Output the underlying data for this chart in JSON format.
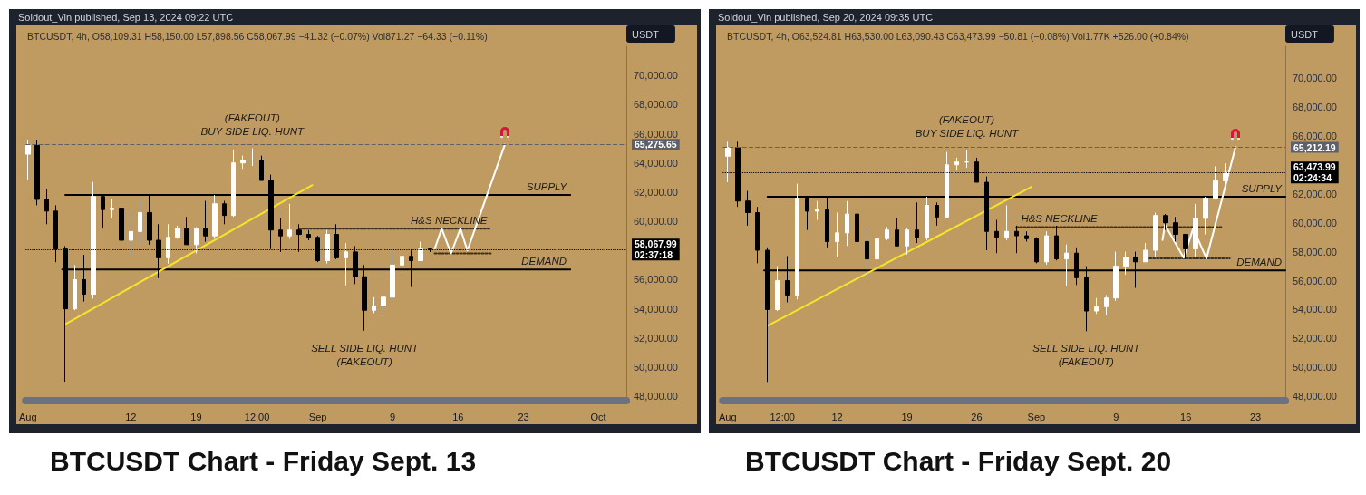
{
  "chart_data": [
    {
      "type": "candlestick",
      "title": "BTCUSDT Chart - Friday Sept. 13",
      "ylabel": "USDT",
      "colors": [
        "#ffffff",
        "#000000",
        "#000000",
        "#000000",
        "#000000",
        "#ffffff",
        "#000000",
        "#ffffff",
        "#000000",
        "#ffffff",
        "#000000",
        "#ffffff",
        "#ffffff",
        "#000000",
        "#000000",
        "#ffffff",
        "#ffffff",
        "#000000",
        "#ffffff",
        "#000000",
        "#ffffff",
        "#000000",
        "#ffffff",
        "#ffffff",
        "#ffffff",
        "#000000",
        "#000000",
        "#000000",
        "#ffffff",
        "#000000",
        "#000000",
        "#000000",
        "#ffffff",
        "#000000",
        "#ffffff",
        "#000000",
        "#000000",
        "#ffffff",
        "#ffffff",
        "#ffffff",
        "#ffffff",
        "#000000",
        "#ffffff",
        "#000000"
      ],
      "annotations": [
        "Soldout_Vin published, Sep 13, 2024 09:22 UTC",
        "BTCUSDT, 4h, O58,109.31 H58,150.00 L57,898.56 C58,067.99 −41.32 (−0.07%) Vol871.27 −64.33 (−0.11%)",
        "(FAKEOUT)",
        "BUY SIDE LIQ. HUNT",
        "SELL SIDE LIQ. HUNT",
        "(FAKEOUT)"
      ],
      "x": [
        "2024-08-01",
        "2024-08-02",
        "2024-08-03",
        "2024-08-04",
        "2024-08-05",
        "2024-08-06",
        "2024-08-07",
        "2024-08-08",
        "2024-08-09",
        "2024-08-10",
        "2024-08-11",
        "2024-08-12",
        "2024-08-13",
        "2024-08-14",
        "2024-08-15",
        "2024-08-16",
        "2024-08-17",
        "2024-08-18",
        "2024-08-19",
        "2024-08-20",
        "2024-08-21",
        "2024-08-22",
        "2024-08-23",
        "2024-08-24",
        "2024-08-25",
        "2024-08-26",
        "2024-08-27",
        "2024-08-28",
        "2024-08-29",
        "2024-08-30",
        "2024-08-31",
        "2024-09-01",
        "2024-09-02",
        "2024-09-03",
        "2024-09-04",
        "2024-09-05",
        "2024-09-06",
        "2024-09-07",
        "2024-09-08",
        "2024-09-09",
        "2024-09-10",
        "2024-09-11",
        "2024-09-12",
        "2024-09-13"
      ],
      "ohlc": [
        [
          64600,
          65600,
          62800,
          65200
        ],
        [
          65200,
          65600,
          61100,
          61500
        ],
        [
          61500,
          62200,
          59800,
          60700
        ],
        [
          60700,
          61100,
          57200,
          58100
        ],
        [
          58100,
          58300,
          49000,
          54000
        ],
        [
          54000,
          57000,
          53900,
          56000
        ],
        [
          56000,
          57700,
          54500,
          55000
        ],
        [
          55000,
          62700,
          54700,
          61700
        ],
        [
          61700,
          61800,
          59500,
          60800
        ],
        [
          60800,
          61500,
          60200,
          60900
        ],
        [
          60900,
          61800,
          58300,
          58700
        ],
        [
          58700,
          60700,
          57600,
          59300
        ],
        [
          59300,
          61500,
          58400,
          60600
        ],
        [
          60600,
          61800,
          58400,
          58700
        ],
        [
          58700,
          59800,
          56100,
          57500
        ],
        [
          57500,
          59800,
          57100,
          58900
        ],
        [
          58900,
          59700,
          58800,
          59500
        ],
        [
          59500,
          60300,
          58400,
          58400
        ],
        [
          58400,
          59600,
          57800,
          59500
        ],
        [
          59500,
          61400,
          58600,
          59000
        ],
        [
          59000,
          61800,
          58800,
          61200
        ],
        [
          61200,
          61400,
          59800,
          60400
        ],
        [
          60400,
          64900,
          60300,
          64000
        ],
        [
          64000,
          64500,
          63600,
          64200
        ],
        [
          64200,
          65000,
          63800,
          64200
        ],
        [
          64200,
          64500,
          62800,
          62800
        ],
        [
          62800,
          63200,
          58100,
          59400
        ],
        [
          59400,
          60200,
          57900,
          59000
        ],
        [
          59000,
          61200,
          58800,
          59400
        ],
        [
          59400,
          59800,
          57900,
          59100
        ],
        [
          59100,
          59400,
          58700,
          58900
        ],
        [
          58900,
          59000,
          57200,
          57300
        ],
        [
          57300,
          59400,
          57100,
          59100
        ],
        [
          59100,
          59800,
          57400,
          57500
        ],
        [
          57500,
          58500,
          55600,
          57900
        ],
        [
          57900,
          58300,
          55700,
          56200
        ],
        [
          56200,
          57000,
          52500,
          53900
        ],
        [
          53900,
          54800,
          53700,
          54200
        ],
        [
          54200,
          55000,
          53600,
          54800
        ],
        [
          54800,
          58000,
          54600,
          57000
        ],
        [
          57000,
          58000,
          56400,
          57600
        ],
        [
          57600,
          58000,
          55500,
          57300
        ],
        [
          57300,
          58600,
          57300,
          58100
        ],
        [
          58100,
          58150,
          57900,
          58068
        ]
      ],
      "series": [
        {
          "type": "line",
          "color": "#000000",
          "name": "SUPPLY",
          "x": [
            "2024-08-05",
            "2024-09-28"
          ],
          "values": [
            61800,
            61800
          ]
        },
        {
          "type": "line",
          "color": "#000000",
          "name": "DEMAND",
          "x": [
            "2024-08-04T16:00",
            "2024-09-28"
          ],
          "values": [
            56700,
            56700
          ]
        },
        {
          "type": "line",
          "color": "#3a3020",
          "name": "H&S NECKLINE",
          "line_style": "dotted",
          "x": [
            "2024-08-30",
            "2024-09-19T12:00"
          ],
          "values": [
            59500,
            59500
          ]
        },
        {
          "type": "line",
          "color": "#3a3020",
          "line_style": "dotted",
          "x": [
            "2024-09-13T12:00",
            "2024-09-19T12:00"
          ],
          "values": [
            57800,
            57800
          ]
        },
        {
          "type": "line",
          "color": "#f5e42a",
          "x": [
            "2024-08-05",
            "2024-08-31T10:00"
          ],
          "values": [
            52950,
            62480
          ]
        },
        {
          "type": "line",
          "color": "#ffffff",
          "x": [
            "2024-09-13T12:00",
            "2024-09-14T06:00",
            "2024-09-15T06:00",
            "2024-09-16T06:00",
            "2024-09-17",
            "2024-09-21"
          ],
          "values": [
            58100,
            59500,
            57800,
            59500,
            58000,
            65250
          ]
        }
      ],
      "ref_lines": [
        {
          "axis": "y",
          "value": 65275.65,
          "label": "65,275.65",
          "line_style": "dashed",
          "color": "#5d606b"
        },
        {
          "axis": "y",
          "value": 58067.99,
          "label": "58,067.99\n02:37:18",
          "line_style": "dotted",
          "color": "#000000"
        }
      ],
      "marker": "none",
      "xlim": [
        "2024-07-31T18:00",
        "2024-10-04"
      ],
      "xticks": [
        {
          "value": "2024-08-01",
          "label": "Aug"
        },
        {
          "value": "2024-08-12",
          "label": "12"
        },
        {
          "value": "2024-08-19",
          "label": "19"
        },
        {
          "value": "2024-08-25T12:00",
          "label": "12:00"
        },
        {
          "value": "2024-09-01",
          "label": "Sep"
        },
        {
          "value": "2024-09-09",
          "label": "9"
        },
        {
          "value": "2024-09-16",
          "label": "16"
        },
        {
          "value": "2024-09-23",
          "label": "23"
        },
        {
          "value": "2024-10-01",
          "label": "Oct"
        }
      ],
      "ylim": [
        47700,
        72000
      ],
      "yticks": [
        {
          "value": 48000,
          "label": "48,000.00"
        },
        {
          "value": 50000,
          "label": "50,000.00"
        },
        {
          "value": 52000,
          "label": "52,000.00"
        },
        {
          "value": 54000,
          "label": "54,000.00"
        },
        {
          "value": 56000,
          "label": "56,000.00"
        },
        {
          "value": 60000,
          "label": "60,000.00"
        },
        {
          "value": 62000,
          "label": "62,000.00"
        },
        {
          "value": 64000,
          "label": "64,000.00"
        },
        {
          "value": 66000,
          "label": "66,000.00"
        },
        {
          "value": 68000,
          "label": "68,000.00"
        },
        {
          "value": 70000,
          "label": "70,000.00"
        }
      ]
    },
    {
      "type": "candlestick",
      "title": "BTCUSDT Chart - Friday Sept. 20",
      "ylabel": "USDT",
      "colors": [
        "#ffffff",
        "#000000",
        "#000000",
        "#000000",
        "#000000",
        "#ffffff",
        "#000000",
        "#ffffff",
        "#000000",
        "#ffffff",
        "#000000",
        "#ffffff",
        "#ffffff",
        "#000000",
        "#000000",
        "#ffffff",
        "#ffffff",
        "#000000",
        "#ffffff",
        "#000000",
        "#ffffff",
        "#000000",
        "#ffffff",
        "#ffffff",
        "#ffffff",
        "#000000",
        "#000000",
        "#000000",
        "#ffffff",
        "#000000",
        "#000000",
        "#000000",
        "#ffffff",
        "#000000",
        "#ffffff",
        "#000000",
        "#000000",
        "#ffffff",
        "#ffffff",
        "#ffffff",
        "#ffffff",
        "#000000",
        "#ffffff",
        "#ffffff",
        "#000000",
        "#000000",
        "#000000",
        "#ffffff",
        "#ffffff",
        "#ffffff",
        "#ffffff"
      ],
      "annotations": [
        "Soldout_Vin published, Sep 20, 2024 09:35 UTC",
        "BTCUSDT, 4h, O63,524.81 H63,530.00 L63,090.43 C63,473.99 −50.81 (−0.08%) Vol1.77K +526.00 (+0.84%)",
        "(FAKEOUT)",
        "BUY SIDE LIQ. HUNT",
        "SELL SIDE LIQ. HUNT",
        "(FAKEOUT)"
      ],
      "x": [
        "2024-08-01",
        "2024-08-02",
        "2024-08-03",
        "2024-08-04",
        "2024-08-05",
        "2024-08-06",
        "2024-08-07",
        "2024-08-08",
        "2024-08-09",
        "2024-08-10",
        "2024-08-11",
        "2024-08-12",
        "2024-08-13",
        "2024-08-14",
        "2024-08-15",
        "2024-08-16",
        "2024-08-17",
        "2024-08-18",
        "2024-08-19",
        "2024-08-20",
        "2024-08-21",
        "2024-08-22",
        "2024-08-23",
        "2024-08-24",
        "2024-08-25",
        "2024-08-26",
        "2024-08-27",
        "2024-08-28",
        "2024-08-29",
        "2024-08-30",
        "2024-08-31",
        "2024-09-01",
        "2024-09-02",
        "2024-09-03",
        "2024-09-04",
        "2024-09-05",
        "2024-09-06",
        "2024-09-07",
        "2024-09-08",
        "2024-09-09",
        "2024-09-10",
        "2024-09-11",
        "2024-09-12",
        "2024-09-13",
        "2024-09-14",
        "2024-09-15",
        "2024-09-16",
        "2024-09-17",
        "2024-09-18",
        "2024-09-19",
        "2024-09-20"
      ],
      "ohlc": [
        [
          64600,
          65600,
          62800,
          65200
        ],
        [
          65200,
          65600,
          61100,
          61500
        ],
        [
          61500,
          62200,
          59800,
          60700
        ],
        [
          60700,
          61100,
          57200,
          58100
        ],
        [
          58100,
          58300,
          49000,
          54000
        ],
        [
          54000,
          57000,
          53900,
          56000
        ],
        [
          56000,
          57700,
          54500,
          55000
        ],
        [
          55000,
          62700,
          54700,
          61700
        ],
        [
          61700,
          61800,
          59500,
          60800
        ],
        [
          60800,
          61500,
          60200,
          60900
        ],
        [
          60900,
          61800,
          58300,
          58700
        ],
        [
          58700,
          60700,
          57600,
          59300
        ],
        [
          59300,
          61500,
          58400,
          60600
        ],
        [
          60600,
          61800,
          58400,
          58700
        ],
        [
          58700,
          59800,
          56100,
          57500
        ],
        [
          57500,
          59800,
          57100,
          58900
        ],
        [
          58900,
          59700,
          58800,
          59500
        ],
        [
          59500,
          60300,
          58400,
          58400
        ],
        [
          58400,
          59600,
          57800,
          59500
        ],
        [
          59500,
          61400,
          58600,
          59000
        ],
        [
          59000,
          61800,
          58800,
          61200
        ],
        [
          61200,
          61400,
          59800,
          60400
        ],
        [
          60400,
          64900,
          60300,
          64000
        ],
        [
          64000,
          64500,
          63600,
          64200
        ],
        [
          64200,
          65000,
          63800,
          64200
        ],
        [
          64200,
          64500,
          62800,
          62800
        ],
        [
          62800,
          63200,
          58100,
          59400
        ],
        [
          59400,
          60200,
          57900,
          59000
        ],
        [
          59000,
          61200,
          58800,
          59400
        ],
        [
          59400,
          59800,
          57900,
          59100
        ],
        [
          59100,
          59400,
          58700,
          58900
        ],
        [
          58900,
          59000,
          57200,
          57300
        ],
        [
          57300,
          59400,
          57100,
          59100
        ],
        [
          59100,
          59800,
          57400,
          57500
        ],
        [
          57500,
          58500,
          55600,
          57900
        ],
        [
          57900,
          58300,
          55700,
          56200
        ],
        [
          56200,
          57000,
          52500,
          53900
        ],
        [
          53900,
          54800,
          53700,
          54200
        ],
        [
          54200,
          55000,
          53600,
          54800
        ],
        [
          54800,
          58000,
          54600,
          57000
        ],
        [
          57000,
          58000,
          56400,
          57600
        ],
        [
          57600,
          58000,
          55500,
          57300
        ],
        [
          57300,
          58600,
          57300,
          58100
        ],
        [
          58100,
          60700,
          57600,
          60500
        ],
        [
          60500,
          60600,
          59500,
          60000
        ],
        [
          60000,
          60400,
          58700,
          59200
        ],
        [
          59200,
          59200,
          57500,
          58200
        ],
        [
          58200,
          61300,
          57600,
          60300
        ],
        [
          60300,
          61800,
          59200,
          61700
        ],
        [
          61700,
          63900,
          61600,
          62900
        ],
        [
          62900,
          64100,
          62600,
          63474
        ]
      ],
      "series": [
        {
          "type": "line",
          "color": "#000000",
          "name": "SUPPLY",
          "x": [
            "2024-08-05",
            "2024-09-26"
          ],
          "values": [
            61800,
            61800
          ]
        },
        {
          "type": "line",
          "color": "#000000",
          "name": "DEMAND",
          "x": [
            "2024-08-04T16:00",
            "2024-09-26"
          ],
          "values": [
            56700,
            56700
          ]
        },
        {
          "type": "line",
          "color": "#3a3020",
          "name": "H&S NECKLINE",
          "line_style": "dotted",
          "x": [
            "2024-08-30",
            "2024-09-19T14:00"
          ],
          "values": [
            59700,
            59700
          ]
        },
        {
          "type": "line",
          "color": "#3a3020",
          "line_style": "dotted",
          "x": [
            "2024-09-12",
            "2024-09-20T10:00"
          ],
          "values": [
            57530,
            57530
          ]
        },
        {
          "type": "line",
          "color": "#f5e42a",
          "x": [
            "2024-08-05",
            "2024-08-31T12:00"
          ],
          "values": [
            52880,
            62480
          ]
        },
        {
          "type": "line",
          "color": "#ffffff",
          "x": [
            "2024-09-13T16:00",
            "2024-09-13T22:00",
            "2024-09-15T19:00",
            "2024-09-16T18:00",
            "2024-09-18T02:00",
            "2024-09-21"
          ],
          "values": [
            58810,
            59850,
            57590,
            59610,
            57530,
            65230
          ]
        }
      ],
      "ref_lines": [
        {
          "axis": "y",
          "value": 65212.19,
          "label": "65,212.19",
          "line_style": "dashed",
          "color": "#5d606b"
        },
        {
          "axis": "y",
          "value": 63473.99,
          "label": "63,473.99\n02:24:34",
          "line_style": "dotted",
          "color": "#000000"
        }
      ],
      "marker": "none",
      "xlim": [
        "2024-07-31T12:00",
        "2024-09-26"
      ],
      "xticks": [
        {
          "value": "2024-08-01",
          "label": "Aug"
        },
        {
          "value": "2024-08-06T12:00",
          "label": "12:00"
        },
        {
          "value": "2024-08-12",
          "label": "12"
        },
        {
          "value": "2024-08-19",
          "label": "19"
        },
        {
          "value": "2024-08-26",
          "label": "26"
        },
        {
          "value": "2024-09-01",
          "label": "Sep"
        },
        {
          "value": "2024-09-09",
          "label": "9"
        },
        {
          "value": "2024-09-16",
          "label": "16"
        },
        {
          "value": "2024-09-23",
          "label": "23"
        }
      ],
      "ylim": [
        47700,
        72200
      ],
      "yticks": [
        {
          "value": 48000,
          "label": "48,000.00"
        },
        {
          "value": 50000,
          "label": "50,000.00"
        },
        {
          "value": 52000,
          "label": "52,000.00"
        },
        {
          "value": 54000,
          "label": "54,000.00"
        },
        {
          "value": 56000,
          "label": "56,000.00"
        },
        {
          "value": 58000,
          "label": "58,000.00"
        },
        {
          "value": 60000,
          "label": "60,000.00"
        },
        {
          "value": 62000,
          "label": "62,000.00"
        },
        {
          "value": 66000,
          "label": "66,000.00"
        },
        {
          "value": 68000,
          "label": "68,000.00"
        },
        {
          "value": 70000,
          "label": "70,000.00"
        }
      ]
    }
  ]
}
